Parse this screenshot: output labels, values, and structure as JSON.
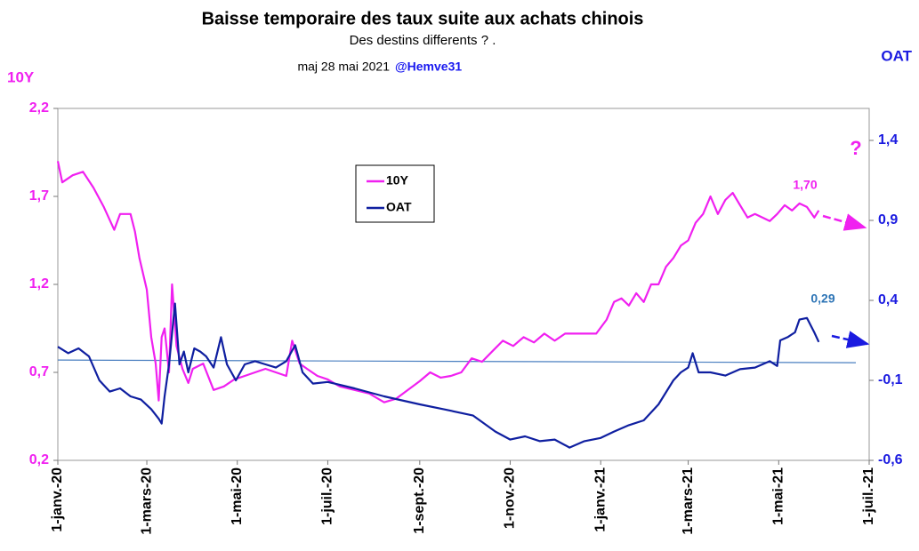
{
  "chart_data": {
    "type": "line",
    "title": "Baisse temporaire des taux suite aux achats chinois",
    "subtitle": "Des destins differents ?  .",
    "update": "maj 28 mai 2021",
    "author": "@Hemve31",
    "ylabel": "10Y",
    "y2label": "OAT",
    "xlim": [
      0,
      547
    ],
    "xticks": [
      {
        "value": 0,
        "label": "1-janv.-20"
      },
      {
        "value": 60,
        "label": "1-mars-20"
      },
      {
        "value": 121,
        "label": "1-mai-20"
      },
      {
        "value": 182,
        "label": "1-juil.-20"
      },
      {
        "value": 244,
        "label": "1-sept.-20"
      },
      {
        "value": 305,
        "label": "1-nov.-20"
      },
      {
        "value": 366,
        "label": "1-janv.-21"
      },
      {
        "value": 425,
        "label": "1-mars-21"
      },
      {
        "value": 486,
        "label": "1-mai-21"
      },
      {
        "value": 547,
        "label": "1-juil.-21"
      }
    ],
    "ylim": [
      0.2,
      2.2
    ],
    "yticks": [
      {
        "value": 0.2,
        "label": "0,2"
      },
      {
        "value": 0.7,
        "label": "0,7"
      },
      {
        "value": 1.2,
        "label": "1,2"
      },
      {
        "value": 1.7,
        "label": "1,7"
      },
      {
        "value": 2.2,
        "label": "2,2"
      }
    ],
    "y2lim": [
      -0.6,
      1.6
    ],
    "y2ticks": [
      {
        "value": -0.6,
        "label": "-0,6"
      },
      {
        "value": -0.1,
        "label": "-0,1"
      },
      {
        "value": 0.4,
        "label": "0,4"
      },
      {
        "value": 0.9,
        "label": "0,9"
      },
      {
        "value": 1.4,
        "label": "1,4"
      }
    ],
    "series": [
      {
        "name": "10Y",
        "color": "#f020f0",
        "x": [
          0,
          3,
          10,
          17,
          24,
          31,
          38,
          42,
          49,
          52,
          55,
          60,
          63,
          66,
          68,
          70,
          72,
          75,
          77,
          80,
          84,
          88,
          91,
          98,
          105,
          112,
          119,
          126,
          133,
          140,
          147,
          154,
          158,
          163,
          168,
          175,
          182,
          190,
          200,
          210,
          220,
          228,
          236,
          244,
          251,
          258,
          265,
          272,
          279,
          286,
          293,
          300,
          307,
          314,
          321,
          328,
          335,
          342,
          349,
          356,
          363,
          370,
          375,
          380,
          385,
          390,
          395,
          400,
          405,
          410,
          415,
          420,
          425,
          430,
          435,
          440,
          445,
          450,
          455,
          460,
          465,
          470,
          475,
          480,
          485,
          490,
          495,
          500,
          505,
          510,
          513
        ],
        "values": [
          1.9,
          1.78,
          1.82,
          1.84,
          1.75,
          1.64,
          1.51,
          1.6,
          1.6,
          1.5,
          1.35,
          1.17,
          0.9,
          0.75,
          0.54,
          0.9,
          0.95,
          0.7,
          1.2,
          0.85,
          0.72,
          0.64,
          0.72,
          0.75,
          0.6,
          0.62,
          0.66,
          0.68,
          0.7,
          0.72,
          0.7,
          0.68,
          0.88,
          0.75,
          0.72,
          0.68,
          0.66,
          0.62,
          0.6,
          0.58,
          0.53,
          0.55,
          0.6,
          0.65,
          0.7,
          0.67,
          0.68,
          0.7,
          0.78,
          0.76,
          0.82,
          0.88,
          0.85,
          0.9,
          0.87,
          0.92,
          0.88,
          0.92,
          0.92,
          0.92,
          0.92,
          1.0,
          1.1,
          1.12,
          1.08,
          1.15,
          1.1,
          1.2,
          1.2,
          1.3,
          1.35,
          1.42,
          1.45,
          1.55,
          1.6,
          1.7,
          1.6,
          1.68,
          1.72,
          1.65,
          1.58,
          1.6,
          1.58,
          1.56,
          1.6,
          1.65,
          1.62,
          1.66,
          1.64,
          1.58,
          1.62
        ]
      },
      {
        "name": "OAT",
        "color": "#0f1fa0",
        "axis": "y2",
        "x": [
          0,
          7,
          14,
          21,
          28,
          35,
          42,
          49,
          56,
          63,
          68,
          70,
          72,
          75,
          79,
          82,
          85,
          88,
          92,
          96,
          100,
          105,
          110,
          114,
          120,
          126,
          133,
          140,
          147,
          154,
          160,
          165,
          172,
          182,
          200,
          220,
          244,
          260,
          280,
          295,
          305,
          315,
          325,
          335,
          345,
          355,
          366,
          375,
          385,
          395,
          405,
          415,
          420,
          425,
          428,
          432,
          440,
          450,
          460,
          470,
          480,
          485,
          487,
          492,
          497,
          500,
          505,
          510,
          513
        ],
        "values": [
          0.11,
          0.07,
          0.1,
          0.05,
          -0.1,
          -0.17,
          -0.15,
          -0.2,
          -0.22,
          -0.28,
          -0.34,
          -0.37,
          -0.2,
          0.0,
          0.38,
          0.0,
          0.08,
          -0.05,
          0.1,
          0.08,
          0.05,
          -0.02,
          0.17,
          0.0,
          -0.1,
          0.0,
          0.02,
          0.0,
          -0.02,
          0.02,
          0.12,
          -0.05,
          -0.12,
          -0.11,
          -0.15,
          -0.2,
          -0.25,
          -0.28,
          -0.32,
          -0.42,
          -0.47,
          -0.45,
          -0.48,
          -0.47,
          -0.52,
          -0.48,
          -0.46,
          -0.42,
          -0.38,
          -0.35,
          -0.25,
          -0.1,
          -0.05,
          -0.02,
          0.07,
          -0.05,
          -0.05,
          -0.07,
          -0.03,
          -0.02,
          0.02,
          -0.01,
          0.15,
          0.17,
          0.2,
          0.28,
          0.29,
          0.2,
          0.14
        ]
      }
    ],
    "reference_line": {
      "color": "#4a7fc0",
      "x": [
        0,
        538
      ],
      "values": [
        0.77,
        0.755
      ]
    },
    "annotations": [
      {
        "text": "1,70",
        "color": "#f020f0"
      },
      {
        "text": "0,29",
        "color": "#2e75b6"
      },
      {
        "text": "?",
        "color": "#f020f0"
      }
    ]
  }
}
